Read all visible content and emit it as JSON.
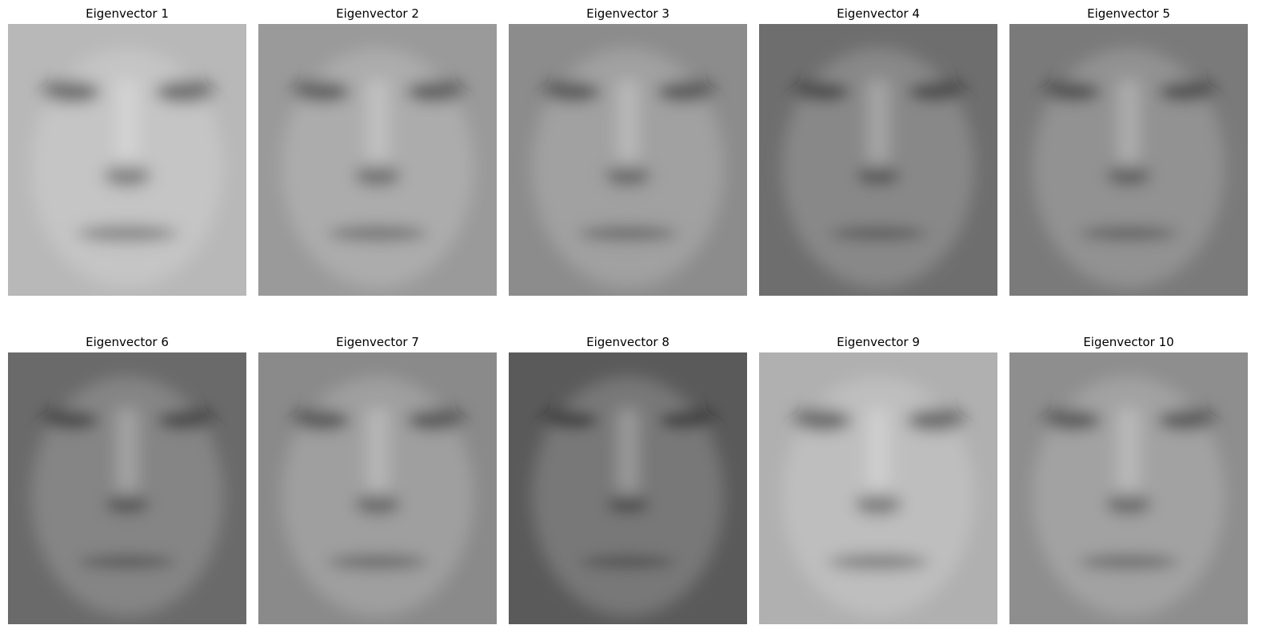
{
  "panels": [
    {
      "title": "Eigenvector 1",
      "tone": "#b8b8b8"
    },
    {
      "title": "Eigenvector 2",
      "tone": "#9a9a9a"
    },
    {
      "title": "Eigenvector 3",
      "tone": "#8c8c8c"
    },
    {
      "title": "Eigenvector 4",
      "tone": "#6e6e6e"
    },
    {
      "title": "Eigenvector 5",
      "tone": "#7a7a7a"
    },
    {
      "title": "Eigenvector 6",
      "tone": "#6a6a6a"
    },
    {
      "title": "Eigenvector 7",
      "tone": "#8a8a8a"
    },
    {
      "title": "Eigenvector 8",
      "tone": "#5a5a5a"
    },
    {
      "title": "Eigenvector 9",
      "tone": "#b0b0b0"
    },
    {
      "title": "Eigenvector 10",
      "tone": "#8e8e8e"
    }
  ]
}
